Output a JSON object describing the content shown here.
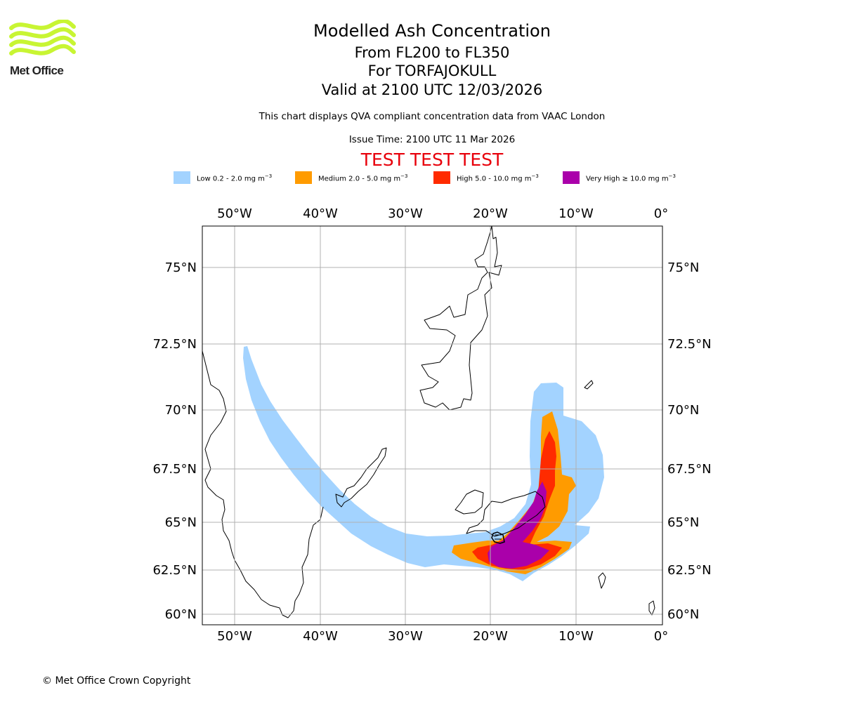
{
  "logo": {
    "text": "Met Office",
    "wave_color": "#c8f533"
  },
  "title": {
    "line1": "Modelled Ash Concentration",
    "line2": "From FL200 to FL350",
    "line3": "For TORFAJOKULL",
    "line4": "Valid at 2100 UTC 12/03/2026"
  },
  "subtitle": "This chart displays QVA compliant concentration data from VAAC London",
  "issue_time": "Issue Time: 2100 UTC 11 Mar 2026",
  "test_banner": "TEST TEST TEST",
  "legend": [
    {
      "key": "low",
      "label": "Low 0.2 - 2.0 mg m",
      "color": "#a3d3ff"
    },
    {
      "key": "medium",
      "label": "Medium 2.0 - 5.0 mg m",
      "color": "#ff9b00"
    },
    {
      "key": "high",
      "label": "High 5.0 - 10.0 mg m",
      "color": "#ff2b00"
    },
    {
      "key": "very_high",
      "label": "Very High  ≥  10.0 mg m",
      "color": "#aa00aa"
    }
  ],
  "legend_unit_exp": "−3",
  "map": {
    "lon_ticks": [
      "50°W",
      "40°W",
      "30°W",
      "20°W",
      "10°W",
      "0°"
    ],
    "lat_ticks": [
      "75°N",
      "72.5°N",
      "70°N",
      "67.5°N",
      "65°N",
      "62.5°N",
      "60°N"
    ],
    "volcano": "TORFAJOKULL"
  },
  "copyright": "© Met Office Crown Copyright"
}
